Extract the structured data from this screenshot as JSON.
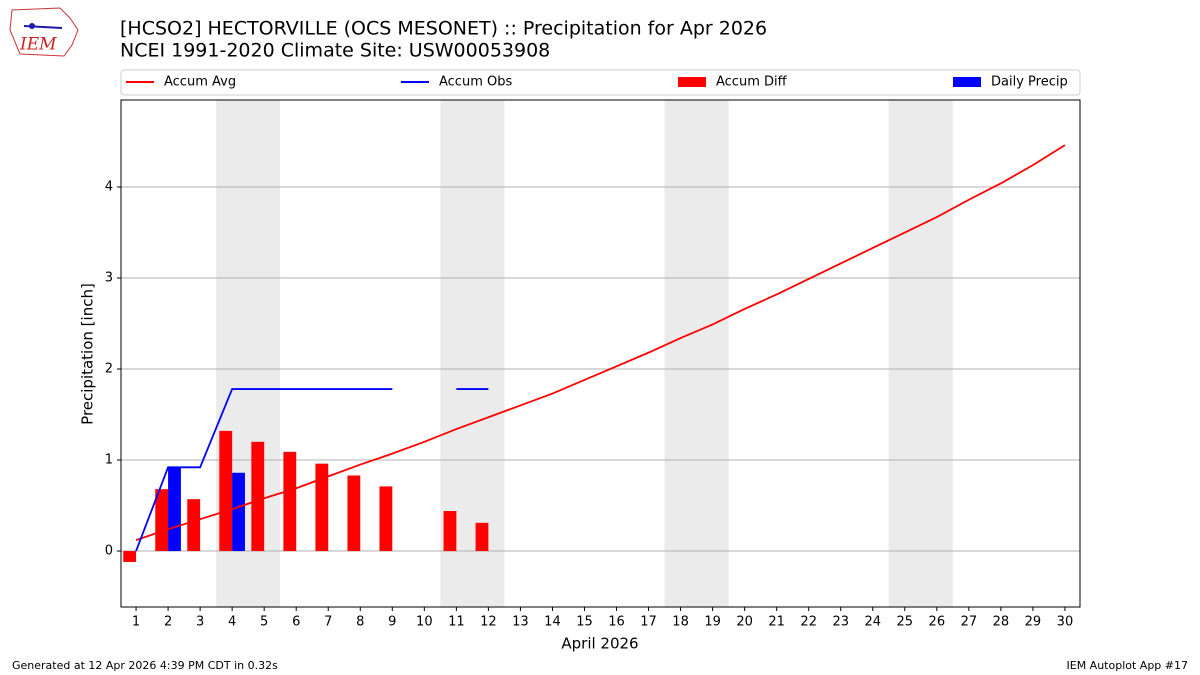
{
  "logo_text": "IEM",
  "footer_left": "Generated at 12 Apr 2026 4:39 PM CDT in 0.32s",
  "footer_right": "IEM Autoplot App #17",
  "chart_data": {
    "type": "combo",
    "title": "[HCSO2] HECTORVILLE (OCS MESONET) :: Precipitation for Apr 2026",
    "subtitle": "NCEI 1991-2020 Climate Site: USW00053908",
    "x_label": "April 2026",
    "y_label": "Precipitation [inch]",
    "x": [
      1,
      2,
      3,
      4,
      5,
      6,
      7,
      8,
      9,
      10,
      11,
      12,
      13,
      14,
      15,
      16,
      17,
      18,
      19,
      20,
      21,
      22,
      23,
      24,
      25,
      26,
      27,
      28,
      29,
      30
    ],
    "xlim": [
      0.53,
      30.47
    ],
    "xticks": [
      1,
      2,
      3,
      4,
      5,
      6,
      7,
      8,
      9,
      10,
      11,
      12,
      13,
      14,
      15,
      16,
      17,
      18,
      19,
      20,
      21,
      22,
      23,
      24,
      25,
      26,
      27,
      28,
      29,
      30
    ],
    "ylim": [
      -0.615,
      4.956
    ],
    "yticks": [
      0,
      1,
      2,
      3,
      4
    ],
    "grid": true,
    "shaded_ranges": [
      [
        3.5,
        5.5
      ],
      [
        10.5,
        12.5
      ],
      [
        17.5,
        19.5
      ],
      [
        24.5,
        26.5
      ]
    ],
    "series": [
      {
        "name": "Accum Avg",
        "kind": "line",
        "color": "#ff0000",
        "values": [
          0.12,
          0.24,
          0.35,
          0.46,
          0.58,
          0.69,
          0.82,
          0.95,
          1.07,
          1.2,
          1.34,
          1.47,
          1.6,
          1.73,
          1.88,
          2.03,
          2.18,
          2.34,
          2.49,
          2.66,
          2.82,
          2.99,
          3.16,
          3.33,
          3.5,
          3.67,
          3.86,
          4.04,
          4.24,
          4.46
        ]
      },
      {
        "name": "Accum Obs",
        "kind": "line",
        "color": "#0000ff",
        "values": [
          0,
          0.92,
          0.92,
          1.78,
          1.78,
          1.78,
          1.78,
          1.78,
          1.78,
          null,
          1.78,
          1.78,
          null,
          null,
          null,
          null,
          null,
          null,
          null,
          null,
          null,
          null,
          null,
          null,
          null,
          null,
          null,
          null,
          null,
          null
        ]
      },
      {
        "name": "Accum Diff",
        "kind": "bar_left",
        "color": "#ff0000",
        "values": [
          -0.12,
          0.68,
          0.57,
          1.32,
          1.2,
          1.09,
          0.96,
          0.83,
          0.71,
          null,
          0.44,
          0.31,
          null,
          null,
          null,
          null,
          null,
          null,
          null,
          null,
          null,
          null,
          null,
          null,
          null,
          null,
          null,
          null,
          null,
          null
        ]
      },
      {
        "name": "Daily Precip",
        "kind": "bar_right",
        "color": "#0000ff",
        "values": [
          0,
          0.92,
          0,
          0.86,
          0,
          0,
          0,
          0,
          0,
          null,
          0,
          0,
          null,
          null,
          null,
          null,
          null,
          null,
          null,
          null,
          null,
          null,
          null,
          null,
          null,
          null,
          null,
          null,
          null,
          null
        ]
      }
    ]
  }
}
